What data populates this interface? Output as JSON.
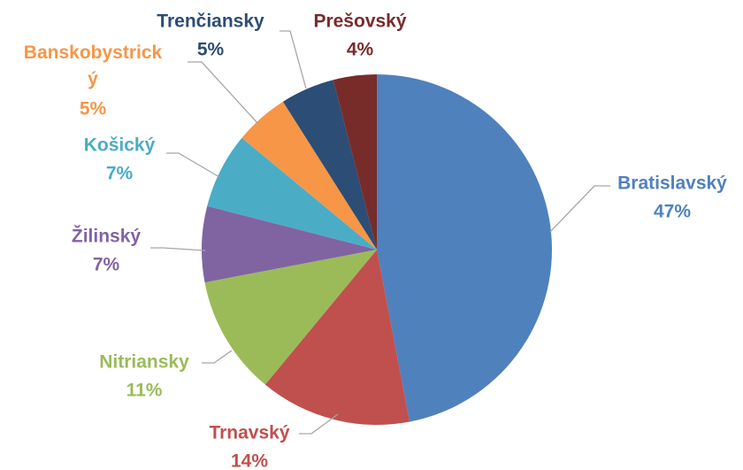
{
  "chart_data": {
    "type": "pie",
    "categories": [
      "Bratislavský",
      "Trnavský",
      "Nitriansky",
      "Žilinský",
      "Košický",
      "Banskobystrický",
      "Trenčiansky",
      "Prešovský"
    ],
    "values": [
      47,
      14,
      11,
      7,
      7,
      5,
      5,
      4
    ],
    "value_labels": [
      "47%",
      "14%",
      "11%",
      "7%",
      "7%",
      "5%",
      "5%",
      "4%"
    ],
    "colors": [
      "#4f81bd",
      "#c0504d",
      "#9bbb59",
      "#8064a2",
      "#4bacc6",
      "#f79646",
      "#2c4d75",
      "#772c2a"
    ]
  }
}
